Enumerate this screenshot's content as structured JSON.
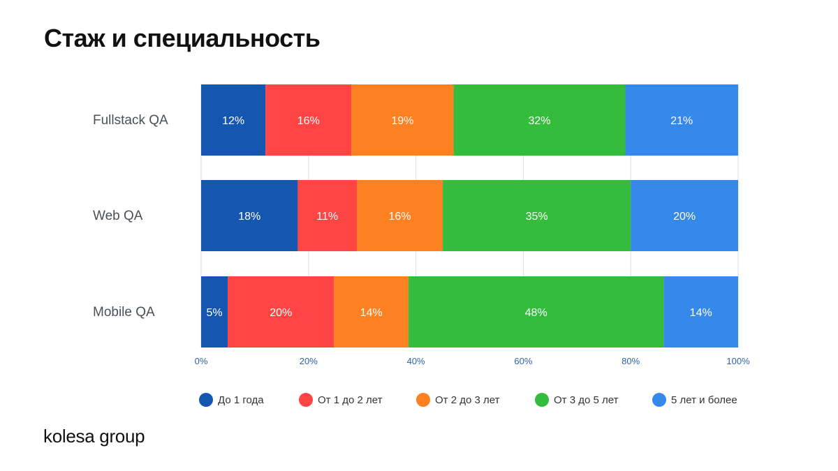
{
  "page": {
    "title": "Стаж и специальность",
    "logo": "kolesa group"
  },
  "chart_data": {
    "type": "bar",
    "orientation": "horizontal",
    "stacked": true,
    "title": "Стаж и специальность",
    "categories": [
      "Fullstack QA",
      "Web QA",
      "Mobile QA"
    ],
    "xlim": [
      0,
      100
    ],
    "x_ticks": [
      "0%",
      "20%",
      "40%",
      "60%",
      "80%",
      "100%"
    ],
    "grid": true,
    "legend_position": "bottom",
    "series": [
      {
        "name": "До 1 года",
        "color": "#1557b0",
        "values": [
          12,
          18,
          5
        ],
        "labels": [
          "12%",
          "18%",
          "5%"
        ]
      },
      {
        "name": "От 1 до 2 лет",
        "color": "#ff4444",
        "values": [
          16,
          11,
          20
        ],
        "labels": [
          "16%",
          "11%",
          "20%"
        ]
      },
      {
        "name": "От 2 до 3 лет",
        "color": "#fd8120",
        "values": [
          19,
          16,
          14
        ],
        "labels": [
          "19%",
          "16%",
          "14%"
        ]
      },
      {
        "name": "От 3 до 5 лет",
        "color": "#36bc3c",
        "values": [
          32,
          35,
          48
        ],
        "labels": [
          "32%",
          "35%",
          "48%"
        ]
      },
      {
        "name": "5 лет и более",
        "color": "#3688ea",
        "values": [
          21,
          20,
          14
        ],
        "labels": [
          "21%",
          "20%",
          "14%"
        ]
      }
    ]
  }
}
